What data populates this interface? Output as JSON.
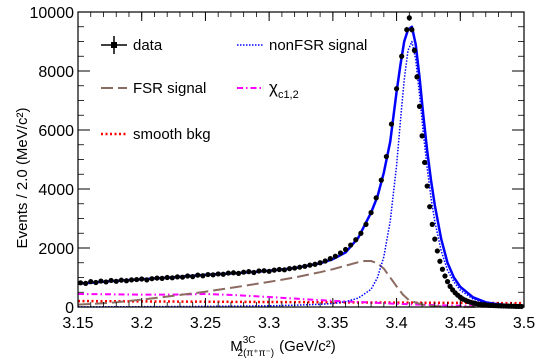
{
  "chart_data": {
    "type": "line",
    "title": "",
    "xlabel": {
      "main": "M",
      "superscript": "3C",
      "subscript": "2(π⁺π⁻)",
      "unit": "(GeV/c²)"
    },
    "ylabel": "Events / 2.0 (MeV/c²)",
    "xlim": [
      3.15,
      3.5
    ],
    "ylim": [
      0,
      10000
    ],
    "x_ticks": [
      3.15,
      3.2,
      3.25,
      3.3,
      3.35,
      3.4,
      3.45,
      3.5
    ],
    "x_tick_labels": [
      "3.15",
      "3.2",
      "3.25",
      "3.3",
      "3.35",
      "3.4",
      "3.45",
      "3.5"
    ],
    "y_ticks": [
      0,
      2000,
      4000,
      6000,
      8000,
      10000
    ],
    "y_tick_labels": [
      "0",
      "2000",
      "4000",
      "6000",
      "8000",
      "10000"
    ],
    "grid": false,
    "legend": {
      "placement": "top-left",
      "entries": [
        {
          "key": "data",
          "label": "data",
          "style": "marker-errorbar",
          "color": "#000000"
        },
        {
          "key": "nonfsr",
          "label": "nonFSR signal",
          "style": "dotted",
          "color": "#0000ff"
        },
        {
          "key": "fsr",
          "label": "FSR signal",
          "style": "long-dash",
          "color": "#8b6b61"
        },
        {
          "key": "chic",
          "label": "χ",
          "label_sub": "c1,2",
          "style": "dash-dot",
          "color": "#ff00ff"
        },
        {
          "key": "bkg",
          "label": "smooth bkg",
          "style": "dotted-thick",
          "color": "#ff0000"
        }
      ]
    },
    "colors": {
      "data": "#000000",
      "total_fit": "#0000ff",
      "nonfsr": "#0000ff",
      "fsr": "#8b6b61",
      "chic": "#ff00ff",
      "bkg": "#ff0000"
    },
    "series": [
      {
        "name": "data",
        "x": [
          3.152,
          3.156,
          3.16,
          3.164,
          3.168,
          3.172,
          3.176,
          3.18,
          3.184,
          3.188,
          3.192,
          3.196,
          3.2,
          3.204,
          3.208,
          3.212,
          3.216,
          3.22,
          3.224,
          3.228,
          3.232,
          3.236,
          3.24,
          3.244,
          3.248,
          3.252,
          3.256,
          3.26,
          3.264,
          3.268,
          3.272,
          3.276,
          3.28,
          3.284,
          3.288,
          3.292,
          3.296,
          3.3,
          3.304,
          3.308,
          3.312,
          3.316,
          3.32,
          3.324,
          3.328,
          3.332,
          3.336,
          3.34,
          3.344,
          3.348,
          3.352,
          3.356,
          3.36,
          3.364,
          3.368,
          3.372,
          3.376,
          3.38,
          3.384,
          3.388,
          3.392,
          3.396,
          3.4,
          3.404,
          3.408,
          3.41,
          3.412,
          3.414,
          3.416,
          3.418,
          3.42,
          3.422,
          3.424,
          3.426,
          3.428,
          3.43,
          3.432,
          3.434,
          3.436,
          3.438,
          3.44,
          3.442,
          3.444,
          3.446,
          3.448,
          3.45,
          3.452,
          3.454,
          3.456,
          3.458,
          3.46,
          3.462,
          3.464,
          3.466,
          3.468,
          3.47,
          3.472,
          3.474,
          3.476,
          3.478,
          3.48,
          3.482,
          3.484,
          3.486,
          3.488,
          3.49,
          3.492,
          3.494,
          3.496,
          3.498
        ],
        "y": [
          820,
          800,
          860,
          830,
          880,
          850,
          900,
          870,
          910,
          890,
          920,
          930,
          950,
          920,
          960,
          980,
          970,
          1000,
          990,
          1020,
          1010,
          1050,
          1030,
          1080,
          1060,
          1100,
          1090,
          1120,
          1110,
          1150,
          1160,
          1140,
          1180,
          1200,
          1170,
          1220,
          1230,
          1210,
          1250,
          1270,
          1260,
          1300,
          1320,
          1350,
          1380,
          1420,
          1450,
          1500,
          1560,
          1640,
          1720,
          1830,
          1950,
          2100,
          2280,
          2500,
          2800,
          3200,
          3700,
          4300,
          5100,
          6200,
          7400,
          8500,
          9400,
          9800,
          9400,
          8700,
          7800,
          6800,
          5800,
          4900,
          4100,
          3400,
          2800,
          2300,
          1900,
          1550,
          1280,
          1050,
          860,
          700,
          580,
          480,
          400,
          330,
          270,
          230,
          190,
          160,
          140,
          120,
          100,
          90,
          80,
          70,
          60,
          55,
          50,
          45,
          40,
          38,
          35,
          32,
          30,
          28,
          25,
          22,
          20,
          18
        ]
      },
      {
        "name": "nonFSR signal",
        "x": [
          3.15,
          3.2,
          3.25,
          3.3,
          3.32,
          3.34,
          3.35,
          3.36,
          3.37,
          3.38,
          3.385,
          3.39,
          3.395,
          3.4,
          3.403,
          3.406,
          3.409,
          3.412,
          3.415,
          3.418,
          3.421,
          3.424,
          3.427,
          3.43,
          3.435,
          3.44,
          3.445,
          3.45,
          3.46,
          3.47,
          3.48,
          3.5
        ],
        "y": [
          5,
          10,
          20,
          40,
          60,
          90,
          120,
          180,
          300,
          600,
          1000,
          1700,
          2900,
          4800,
          6300,
          7700,
          8700,
          9000,
          8400,
          7200,
          5900,
          4700,
          3700,
          2900,
          1900,
          1250,
          850,
          570,
          270,
          140,
          80,
          40
        ]
      },
      {
        "name": "FSR signal",
        "x": [
          3.15,
          3.175,
          3.2,
          3.225,
          3.25,
          3.275,
          3.3,
          3.32,
          3.34,
          3.35,
          3.36,
          3.37,
          3.375,
          3.38,
          3.385,
          3.39,
          3.395,
          3.4,
          3.405,
          3.41,
          3.42,
          3.43,
          3.44,
          3.45,
          3.47,
          3.5
        ],
        "y": [
          80,
          140,
          250,
          380,
          520,
          680,
          850,
          1000,
          1180,
          1280,
          1400,
          1520,
          1560,
          1560,
          1480,
          1300,
          1000,
          700,
          420,
          220,
          80,
          30,
          10,
          5,
          2,
          0
        ]
      },
      {
        "name": "χc1,2",
        "x": [
          3.15,
          3.175,
          3.2,
          3.225,
          3.25,
          3.275,
          3.3,
          3.325,
          3.35,
          3.375,
          3.4,
          3.425,
          3.45,
          3.475,
          3.5
        ],
        "y": [
          440,
          430,
          420,
          420,
          440,
          400,
          340,
          270,
          210,
          160,
          110,
          70,
          40,
          20,
          10
        ]
      },
      {
        "name": "smooth bkg",
        "x": [
          3.15,
          3.2,
          3.25,
          3.3,
          3.35,
          3.4,
          3.45,
          3.5
        ],
        "y": [
          200,
          190,
          180,
          170,
          160,
          150,
          140,
          130
        ]
      },
      {
        "name": "total fit",
        "x": [
          3.15,
          3.175,
          3.2,
          3.225,
          3.25,
          3.275,
          3.3,
          3.32,
          3.34,
          3.35,
          3.36,
          3.37,
          3.38,
          3.385,
          3.39,
          3.395,
          3.4,
          3.403,
          3.406,
          3.409,
          3.412,
          3.415,
          3.418,
          3.421,
          3.424,
          3.427,
          3.43,
          3.435,
          3.44,
          3.445,
          3.45,
          3.46,
          3.47,
          3.48,
          3.49,
          3.5
        ],
        "y": [
          790,
          870,
          940,
          1010,
          1090,
          1150,
          1230,
          1320,
          1480,
          1620,
          1850,
          2350,
          3200,
          3750,
          4550,
          5600,
          7300,
          8200,
          9000,
          9400,
          9500,
          8900,
          7800,
          6500,
          5300,
          4300,
          3450,
          2300,
          1500,
          1000,
          680,
          330,
          160,
          90,
          55,
          40
        ]
      }
    ]
  },
  "axis_labels": {
    "y": "Events / 2.0 (MeV/c²)",
    "x_main": "M",
    "x_sup": "3C",
    "x_sub": "2(π⁺π⁻)",
    "x_unit": "(GeV/c²)"
  }
}
